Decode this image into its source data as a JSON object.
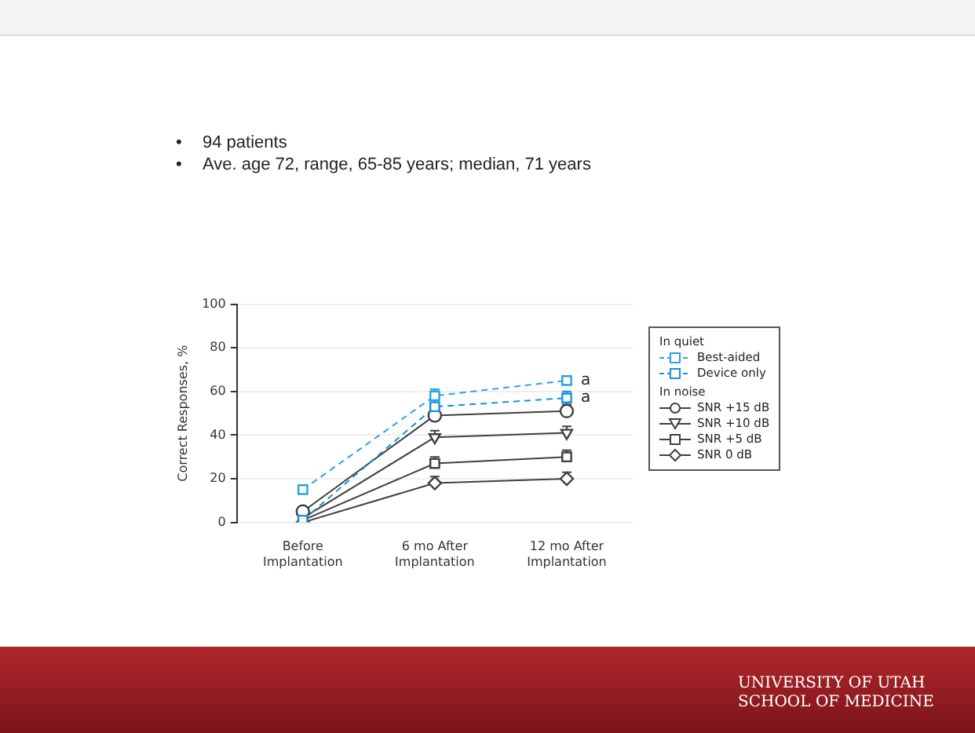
{
  "chart_data": {
    "type": "line",
    "ylabel": "Correct Responses, %",
    "categories": [
      "Before Implantation",
      "6 mo After Implantation",
      "12 mo After Implantation"
    ],
    "ylim": [
      0,
      100
    ],
    "yticks": [
      0,
      20,
      40,
      60,
      80,
      100
    ],
    "grid": "y",
    "legend": "right",
    "series": [
      {
        "name": "Best-aided",
        "color": "#29a3e0",
        "line_style": "dashed",
        "marker": "square",
        "values": [
          15,
          58,
          65
        ],
        "errors": [
          null,
          [
            58,
            61
          ],
          [
            65,
            67
          ]
        ]
      },
      {
        "name": "Device only",
        "color": "#1592d8",
        "line_style": "dashed",
        "marker": "square",
        "values": [
          1,
          53,
          57
        ],
        "errors": [
          null,
          [
            53,
            56
          ],
          [
            57,
            60
          ]
        ]
      },
      {
        "name": "SNR +15 dB",
        "color": "#404040",
        "line_style": "solid",
        "marker": "circle",
        "values": [
          5,
          49,
          51
        ],
        "errors": [
          null,
          null,
          [
            51,
            54
          ]
        ]
      },
      {
        "name": "SNR +10 dB",
        "color": "#404040",
        "line_style": "solid",
        "marker": "triangle",
        "values": [
          2,
          39,
          41
        ],
        "errors": [
          null,
          [
            39,
            42
          ],
          [
            41,
            44
          ]
        ]
      },
      {
        "name": "SNR +5 dB",
        "color": "#404040",
        "line_style": "solid",
        "marker": "square",
        "values": [
          1,
          27,
          30
        ],
        "errors": [
          null,
          [
            27,
            30
          ],
          [
            30,
            33
          ]
        ]
      },
      {
        "name": "SNR 0 dB",
        "color": "#404040",
        "line_style": "solid",
        "marker": "diamond",
        "values": [
          0,
          18,
          20
        ],
        "errors": [
          null,
          [
            18,
            21
          ],
          [
            20,
            23
          ]
        ]
      }
    ],
    "annotations": [
      "•",
      "94 patients",
      "•",
      "Ave. age 72, range, 65-85 years; median, 71 years",
      "In quiet",
      "In noise",
      {
        "text": "a",
        "x": "12 mo After Implantation",
        "y": 65
      },
      {
        "text": "a",
        "x": "12 mo After Implantation",
        "y": 57
      },
      "UNIVERSITY OF UTAH SCHOOL OF MEDICINE"
    ]
  }
}
